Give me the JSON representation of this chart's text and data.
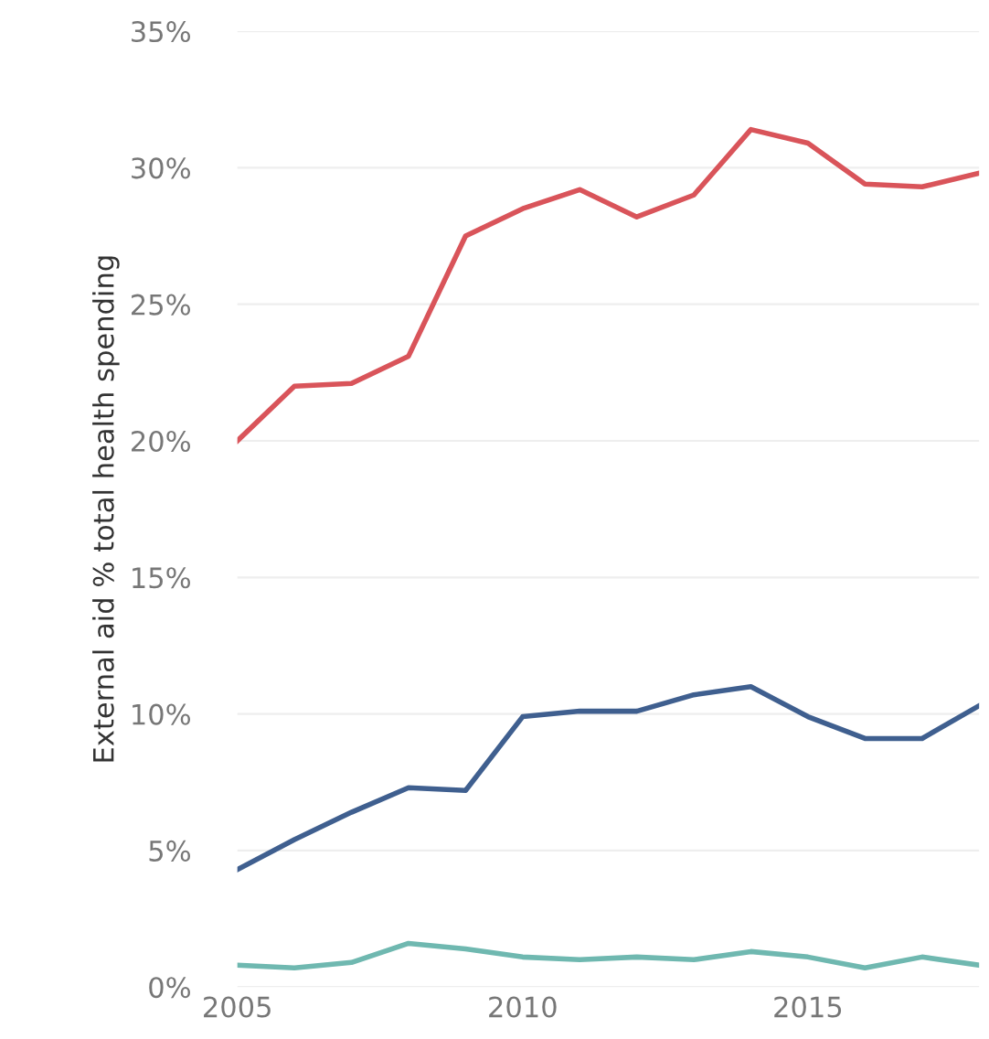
{
  "chart_data": {
    "type": "line",
    "ylabel": "External aid % total health spending",
    "x": [
      2005,
      2006,
      2007,
      2008,
      2009,
      2010,
      2011,
      2012,
      2013,
      2014,
      2015,
      2016,
      2017,
      2018
    ],
    "series": [
      {
        "color": "#d9545a",
        "values": [
          20.0,
          22.0,
          22.1,
          23.1,
          27.5,
          28.5,
          29.2,
          28.2,
          29.0,
          31.4,
          30.9,
          29.4,
          29.3,
          29.8
        ]
      },
      {
        "color": "#3f5f8f",
        "values": [
          4.3,
          5.4,
          6.4,
          7.3,
          7.2,
          9.9,
          10.1,
          10.1,
          10.7,
          11.0,
          9.9,
          9.1,
          9.1,
          10.3
        ]
      },
      {
        "color": "#6fb8b0",
        "values": [
          0.8,
          0.7,
          0.9,
          1.6,
          1.4,
          1.1,
          1.0,
          1.1,
          1.0,
          1.3,
          1.1,
          0.7,
          1.1,
          0.8
        ]
      }
    ],
    "xlim": [
      2005,
      2018
    ],
    "xticks": [
      2005,
      2010,
      2015
    ],
    "ylim": [
      0,
      35
    ],
    "yticks": [
      {
        "value": 0,
        "label": "0%"
      },
      {
        "value": 5,
        "label": "5%"
      },
      {
        "value": 10,
        "label": "10%"
      },
      {
        "value": 15,
        "label": "15%"
      },
      {
        "value": 20,
        "label": "20%"
      },
      {
        "value": 25,
        "label": "25%"
      },
      {
        "value": 30,
        "label": "30%"
      },
      {
        "value": 35,
        "label": "35%"
      }
    ],
    "grid": "y",
    "marker": "none",
    "line_style": "solid"
  }
}
